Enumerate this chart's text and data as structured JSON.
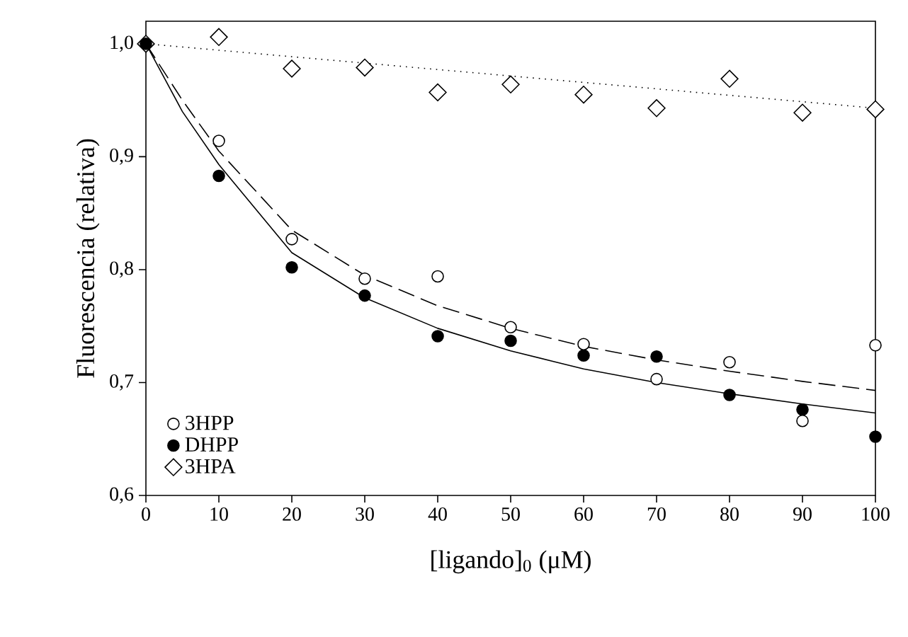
{
  "chart_data": {
    "type": "scatter",
    "xlabel": "[ligando]$_{0}$ (μM)",
    "ylabel": "Fluorescencia (relativa)",
    "xlim": [
      0,
      100
    ],
    "ylim": [
      0.6,
      1.02
    ],
    "xticks": [
      0,
      10,
      20,
      30,
      40,
      50,
      60,
      70,
      80,
      90,
      100
    ],
    "yticks": [
      {
        "value": 0.6,
        "label": "0,6"
      },
      {
        "value": 0.7,
        "label": "0,7"
      },
      {
        "value": 0.8,
        "label": "0,8"
      },
      {
        "value": 0.9,
        "label": "0,9"
      },
      {
        "value": 1.0,
        "label": "1,0"
      }
    ],
    "grid": false,
    "legend": "bottom left",
    "x": [
      0,
      10,
      20,
      30,
      40,
      50,
      60,
      70,
      80,
      90,
      100
    ],
    "series": [
      {
        "name": "3HPP",
        "color": "#ffffff",
        "marker": "circle",
        "values": [
          null,
          0.914,
          0.827,
          0.792,
          0.794,
          0.749,
          0.734,
          0.703,
          0.718,
          0.666,
          0.733
        ]
      },
      {
        "name": "DHPP",
        "color": "#000000",
        "marker": "circle",
        "values": [
          1.0,
          0.883,
          0.802,
          0.777,
          0.741,
          0.737,
          0.724,
          0.723,
          0.689,
          0.676,
          0.652
        ]
      },
      {
        "name": "3HPA",
        "color": "#ffffff",
        "marker": "diamond",
        "values": [
          1.0,
          1.006,
          0.978,
          0.979,
          0.957,
          0.964,
          0.955,
          0.943,
          0.969,
          0.939,
          0.942
        ]
      },
      {
        "type": "line",
        "color": "#000000",
        "line_style": "dashed",
        "x": [
          0,
          5,
          10,
          20,
          30,
          40,
          50,
          60,
          70,
          80,
          90,
          100
        ],
        "values": [
          1.0,
          0.95,
          0.905,
          0.835,
          0.795,
          0.768,
          0.748,
          0.732,
          0.72,
          0.71,
          0.701,
          0.693
        ]
      },
      {
        "type": "line",
        "color": "#000000",
        "line_style": "solid",
        "x": [
          0,
          5,
          10,
          20,
          30,
          40,
          50,
          60,
          70,
          80,
          90,
          100
        ],
        "values": [
          1.0,
          0.94,
          0.893,
          0.815,
          0.775,
          0.748,
          0.728,
          0.712,
          0.7,
          0.69,
          0.681,
          0.673
        ]
      },
      {
        "type": "line",
        "color": "#000000",
        "line_style": "dotted",
        "x": [
          0,
          100
        ],
        "values": [
          1.0,
          0.943
        ]
      }
    ]
  }
}
